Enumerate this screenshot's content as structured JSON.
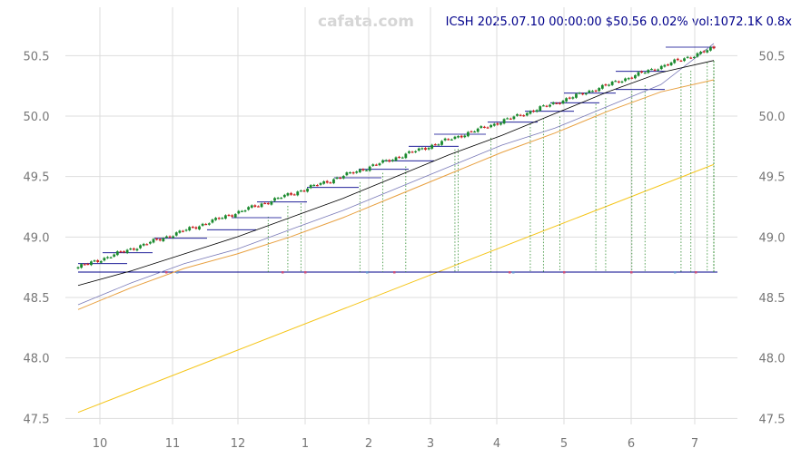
{
  "header": {
    "watermark": "cafata.com",
    "ticker_line": "ICSH 2025.07.10 00:00:00 $50.56 0.02% vol:1072.1K 0.8x"
  },
  "chart_data": {
    "type": "candlestick",
    "symbol": "ICSH",
    "x_ticks": [
      "10",
      "11",
      "12",
      "1",
      "2",
      "3",
      "4",
      "5",
      "6",
      "7"
    ],
    "y_ticks": [
      47.5,
      48.0,
      48.5,
      49.0,
      49.5,
      50.0,
      50.5
    ],
    "ylim": [
      47.45,
      50.9
    ],
    "grid": true,
    "last_price": 50.56,
    "baseline": 48.71,
    "candle_count": 195,
    "start_close": 48.75,
    "end_close": 50.56,
    "series": [
      {
        "values": [
          48.6,
          48.72,
          48.86,
          49.0,
          49.16,
          49.32,
          49.5,
          49.68,
          49.84,
          50.02,
          50.2,
          50.36,
          50.46
        ]
      },
      {
        "values": [
          48.44,
          48.62,
          48.78,
          48.9,
          49.06,
          49.22,
          49.4,
          49.58,
          49.76,
          49.9,
          50.08,
          50.26,
          50.6
        ]
      },
      {
        "values": [
          48.4,
          48.58,
          48.74,
          48.86,
          49.0,
          49.16,
          49.34,
          49.52,
          49.7,
          49.86,
          50.04,
          50.2,
          50.3
        ]
      },
      {
        "values": [
          47.55,
          49.6
        ]
      }
    ],
    "colors": {
      "up": "#1a8a2e",
      "down": "#cc2222",
      "ma_black": "#000000",
      "ma_blue": "#7a7ab8",
      "ma_orange": "#e8a040",
      "trend_yellow": "#f5c518",
      "level_lines": "#00008b",
      "signal_lines": "#2e8b2e",
      "grid": "#dddddd"
    }
  }
}
